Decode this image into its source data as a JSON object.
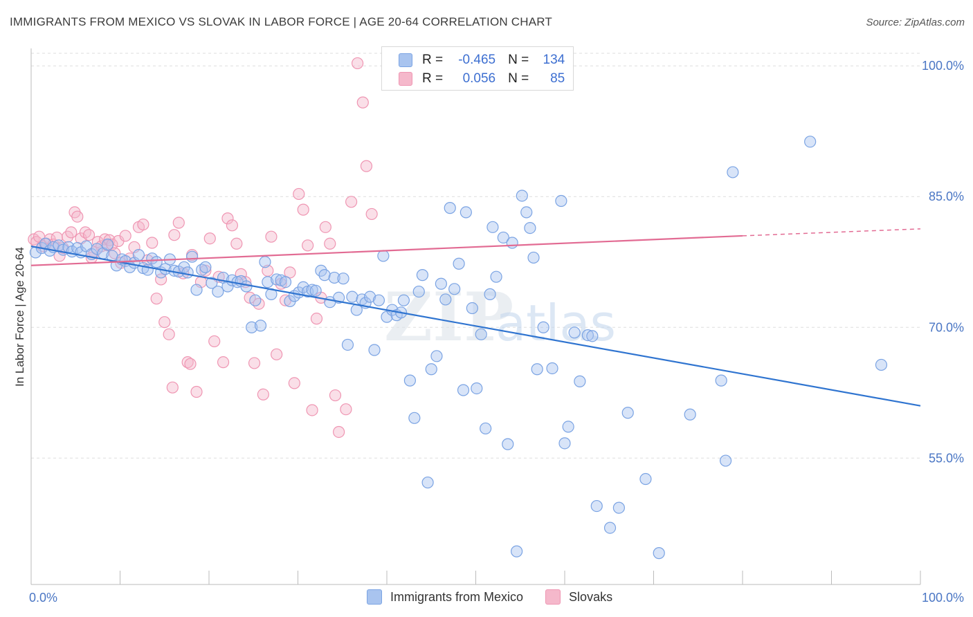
{
  "header": {
    "title": "IMMIGRANTS FROM MEXICO VS SLOVAK IN LABOR FORCE | AGE 20-64 CORRELATION CHART",
    "source": "Source: ZipAtlas.com"
  },
  "legend_box": {
    "rows": [
      {
        "r_label": "R =",
        "r_value": "-0.465",
        "n_label": "N =",
        "n_value": "134",
        "color": "#a9c4ef"
      },
      {
        "r_label": "R =",
        "r_value": "0.056",
        "n_label": "N =",
        "n_value": "85",
        "color": "#f5b8cb"
      }
    ]
  },
  "bottom_legend": [
    {
      "label": "Immigrants from Mexico",
      "color": "#a9c4ef"
    },
    {
      "label": "Slovaks",
      "color": "#f5b8cb"
    }
  ],
  "colors": {
    "blue_fill": "#a9c4ef",
    "blue_stroke": "#7aa3e3",
    "blue_line": "#2f74d0",
    "pink_fill": "#f5b8cb",
    "pink_stroke": "#ef95b2",
    "pink_line": "#e26b93",
    "grid": "#dedede",
    "tick_text": "#4a76c4"
  },
  "chart_data": {
    "type": "scatter",
    "title": "IMMIGRANTS FROM MEXICO VS SLOVAK IN LABOR FORCE | AGE 20-64 CORRELATION CHART",
    "xlabel": "",
    "ylabel": "In Labor Force | Age 20-64",
    "xlim": [
      0,
      100
    ],
    "ylim": [
      40.5,
      102
    ],
    "x_tick_labels": [
      "0.0%",
      "100.0%"
    ],
    "y_ticks": [
      55,
      70,
      85,
      100
    ],
    "y_tick_labels": [
      "55.0%",
      "70.0%",
      "85.0%",
      "100.0%"
    ],
    "grid": true,
    "legend_position": "top-center",
    "watermark": "ZIPatlas",
    "series": [
      {
        "name": "Immigrants from Mexico",
        "trend": {
          "x": [
            0,
            100
          ],
          "y": [
            79.3,
            61.0
          ]
        },
        "points": [
          [
            0.5,
            78.6
          ],
          [
            1.2,
            79.1
          ],
          [
            1.6,
            79.6
          ],
          [
            2.1,
            78.8
          ],
          [
            2.5,
            79.2
          ],
          [
            3.1,
            79.4
          ],
          [
            3.6,
            78.9
          ],
          [
            4.2,
            79.2
          ],
          [
            4.6,
            78.7
          ],
          [
            5.2,
            79.1
          ],
          [
            5.6,
            78.6
          ],
          [
            6.2,
            79.3
          ],
          [
            6.8,
            78.4
          ],
          [
            7.4,
            79.0
          ],
          [
            8.1,
            78.5
          ],
          [
            8.6,
            79.5
          ],
          [
            9.1,
            78.2
          ],
          [
            9.6,
            77.1
          ],
          [
            10.2,
            77.8
          ],
          [
            10.6,
            77.6
          ],
          [
            11.1,
            76.9
          ],
          [
            11.6,
            77.4
          ],
          [
            12.1,
            78.3
          ],
          [
            12.6,
            76.8
          ],
          [
            13.1,
            76.6
          ],
          [
            13.6,
            77.9
          ],
          [
            14.1,
            77.5
          ],
          [
            14.6,
            76.3
          ],
          [
            15.1,
            76.7
          ],
          [
            15.6,
            77.8
          ],
          [
            16.1,
            76.5
          ],
          [
            16.6,
            76.4
          ],
          [
            17.2,
            76.9
          ],
          [
            17.6,
            76.3
          ],
          [
            18.1,
            78.1
          ],
          [
            18.6,
            74.3
          ],
          [
            19.2,
            76.6
          ],
          [
            19.6,
            76.9
          ],
          [
            20.3,
            75.1
          ],
          [
            21.0,
            74.1
          ],
          [
            21.6,
            75.7
          ],
          [
            22.1,
            74.7
          ],
          [
            22.6,
            75.4
          ],
          [
            23.2,
            75.2
          ],
          [
            23.6,
            75.3
          ],
          [
            24.2,
            74.7
          ],
          [
            25.2,
            73.1
          ],
          [
            24.8,
            70.0
          ],
          [
            25.8,
            70.2
          ],
          [
            26.3,
            77.5
          ],
          [
            26.6,
            75.2
          ],
          [
            27.0,
            73.8
          ],
          [
            27.6,
            75.5
          ],
          [
            28.1,
            75.4
          ],
          [
            28.6,
            75.2
          ],
          [
            29.1,
            73.0
          ],
          [
            29.6,
            73.6
          ],
          [
            30.1,
            74.0
          ],
          [
            30.6,
            74.6
          ],
          [
            31.1,
            74.1
          ],
          [
            31.6,
            74.3
          ],
          [
            32.0,
            74.2
          ],
          [
            32.6,
            76.5
          ],
          [
            33.0,
            76.0
          ],
          [
            33.6,
            72.9
          ],
          [
            34.1,
            75.7
          ],
          [
            34.6,
            73.4
          ],
          [
            35.1,
            75.6
          ],
          [
            35.6,
            68.0
          ],
          [
            36.1,
            73.5
          ],
          [
            36.6,
            72.0
          ],
          [
            37.2,
            73.2
          ],
          [
            37.6,
            72.8
          ],
          [
            38.1,
            73.5
          ],
          [
            38.6,
            67.4
          ],
          [
            39.1,
            73.1
          ],
          [
            39.6,
            78.2
          ],
          [
            40.0,
            71.2
          ],
          [
            40.6,
            72.0
          ],
          [
            41.1,
            71.4
          ],
          [
            41.6,
            71.7
          ],
          [
            41.9,
            73.1
          ],
          [
            42.6,
            63.9
          ],
          [
            43.1,
            59.6
          ],
          [
            43.6,
            74.1
          ],
          [
            44.0,
            76.0
          ],
          [
            44.6,
            52.2
          ],
          [
            45.0,
            65.2
          ],
          [
            45.6,
            66.7
          ],
          [
            46.1,
            75.0
          ],
          [
            46.6,
            73.2
          ],
          [
            47.1,
            83.7
          ],
          [
            47.6,
            74.4
          ],
          [
            48.1,
            77.3
          ],
          [
            48.6,
            62.8
          ],
          [
            48.9,
            83.2
          ],
          [
            49.6,
            72.2
          ],
          [
            50.1,
            63.0
          ],
          [
            50.6,
            69.2
          ],
          [
            51.1,
            58.4
          ],
          [
            51.6,
            73.8
          ],
          [
            51.9,
            81.5
          ],
          [
            52.3,
            75.8
          ],
          [
            53.1,
            80.3
          ],
          [
            53.6,
            56.6
          ],
          [
            54.1,
            79.7
          ],
          [
            54.6,
            44.3
          ],
          [
            55.2,
            85.1
          ],
          [
            55.7,
            83.2
          ],
          [
            56.1,
            81.4
          ],
          [
            56.5,
            78.0
          ],
          [
            56.9,
            65.2
          ],
          [
            57.6,
            70.0
          ],
          [
            58.6,
            65.3
          ],
          [
            59.6,
            84.5
          ],
          [
            60.0,
            56.7
          ],
          [
            60.4,
            58.6
          ],
          [
            61.1,
            69.4
          ],
          [
            61.7,
            63.8
          ],
          [
            62.6,
            69.1
          ],
          [
            63.1,
            69.0
          ],
          [
            63.6,
            49.5
          ],
          [
            65.1,
            47.0
          ],
          [
            66.1,
            49.3
          ],
          [
            67.1,
            60.2
          ],
          [
            69.1,
            52.6
          ],
          [
            70.6,
            44.1
          ],
          [
            74.1,
            60.0
          ],
          [
            77.6,
            63.9
          ],
          [
            78.1,
            54.7
          ],
          [
            78.9,
            87.8
          ],
          [
            87.6,
            91.3
          ],
          [
            95.6,
            65.7
          ]
        ]
      },
      {
        "name": "Slovaks",
        "trend": {
          "x": [
            0,
            80
          ],
          "y": [
            77.1,
            80.5
          ]
        },
        "trend_dashed_ext": {
          "x": [
            80,
            100
          ],
          "y": [
            80.5,
            81.3
          ]
        },
        "points": [
          [
            0.3,
            80.1
          ],
          [
            0.6,
            79.8
          ],
          [
            0.9,
            80.4
          ],
          [
            1.3,
            79.3
          ],
          [
            1.7,
            79.6
          ],
          [
            2.1,
            80.1
          ],
          [
            2.5,
            79.5
          ],
          [
            2.9,
            80.3
          ],
          [
            3.2,
            78.2
          ],
          [
            3.6,
            79.1
          ],
          [
            4.1,
            80.4
          ],
          [
            4.5,
            80.9
          ],
          [
            4.9,
            83.2
          ],
          [
            5.2,
            82.7
          ],
          [
            5.6,
            80.2
          ],
          [
            6.1,
            80.9
          ],
          [
            6.5,
            80.6
          ],
          [
            6.8,
            78.0
          ],
          [
            7.1,
            78.6
          ],
          [
            7.5,
            79.8
          ],
          [
            7.9,
            79.3
          ],
          [
            8.3,
            80.1
          ],
          [
            8.6,
            79.4
          ],
          [
            8.8,
            80.0
          ],
          [
            9.1,
            79.5
          ],
          [
            9.4,
            78.5
          ],
          [
            9.8,
            79.9
          ],
          [
            10.1,
            77.4
          ],
          [
            10.6,
            80.5
          ],
          [
            11.1,
            77.9
          ],
          [
            11.6,
            79.2
          ],
          [
            12.1,
            81.5
          ],
          [
            12.6,
            81.8
          ],
          [
            13.1,
            77.7
          ],
          [
            13.6,
            79.7
          ],
          [
            14.1,
            73.3
          ],
          [
            14.6,
            75.5
          ],
          [
            15.0,
            70.6
          ],
          [
            15.5,
            69.2
          ],
          [
            15.9,
            63.1
          ],
          [
            16.1,
            80.6
          ],
          [
            16.6,
            82.0
          ],
          [
            17.1,
            76.2
          ],
          [
            17.6,
            66.0
          ],
          [
            17.9,
            65.8
          ],
          [
            18.1,
            78.3
          ],
          [
            18.6,
            62.6
          ],
          [
            19.1,
            75.2
          ],
          [
            19.6,
            76.5
          ],
          [
            20.1,
            80.2
          ],
          [
            20.6,
            68.4
          ],
          [
            21.1,
            75.8
          ],
          [
            21.6,
            66.0
          ],
          [
            22.1,
            82.5
          ],
          [
            22.6,
            81.7
          ],
          [
            23.1,
            79.6
          ],
          [
            23.6,
            76.1
          ],
          [
            24.1,
            75.2
          ],
          [
            24.6,
            73.4
          ],
          [
            25.1,
            65.9
          ],
          [
            25.6,
            72.7
          ],
          [
            26.1,
            62.3
          ],
          [
            26.6,
            76.5
          ],
          [
            27.0,
            80.4
          ],
          [
            27.6,
            66.9
          ],
          [
            28.1,
            75.0
          ],
          [
            28.6,
            73.1
          ],
          [
            29.1,
            76.3
          ],
          [
            29.6,
            63.6
          ],
          [
            30.1,
            85.3
          ],
          [
            30.6,
            83.5
          ],
          [
            31.1,
            79.4
          ],
          [
            31.6,
            60.5
          ],
          [
            32.1,
            71.0
          ],
          [
            32.6,
            73.4
          ],
          [
            33.1,
            81.5
          ],
          [
            33.6,
            79.6
          ],
          [
            34.2,
            62.2
          ],
          [
            34.6,
            58.0
          ],
          [
            35.4,
            60.6
          ],
          [
            36.0,
            84.4
          ],
          [
            36.7,
            100.3
          ],
          [
            37.3,
            95.8
          ],
          [
            37.7,
            88.5
          ],
          [
            38.3,
            83.0
          ]
        ]
      }
    ]
  }
}
